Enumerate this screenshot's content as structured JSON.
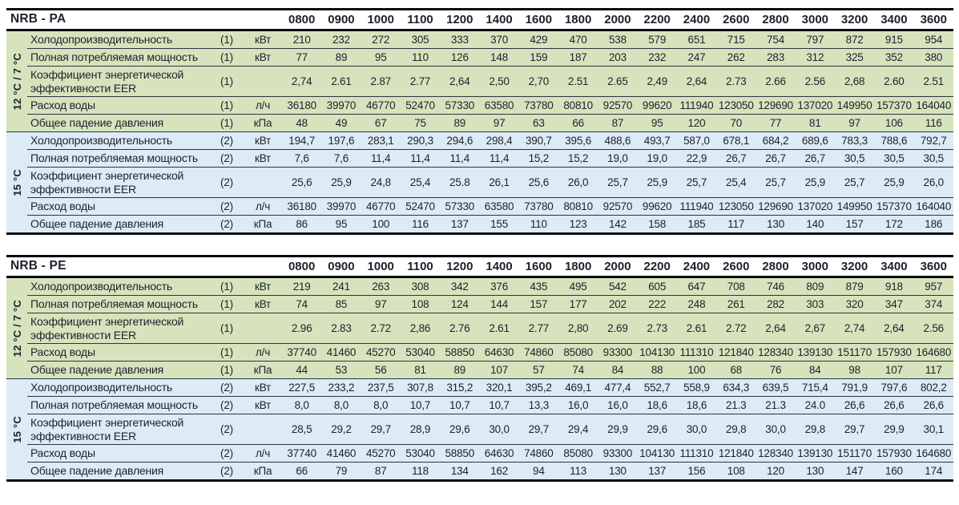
{
  "colors": {
    "green_row_bg": "#d7e3bd",
    "blue_row_bg": "#dcebf5",
    "thick_border": "#0a0d10",
    "thin_row_line": "#2b3540",
    "text": "#1c222b"
  },
  "columns": [
    "0800",
    "0900",
    "1000",
    "1100",
    "1200",
    "1400",
    "1600",
    "1800",
    "2000",
    "2200",
    "2400",
    "2600",
    "2800",
    "3000",
    "3200",
    "3400",
    "3600"
  ],
  "tables": [
    {
      "title": "NRB - PA",
      "sections": [
        {
          "side_label": "12 °C / 7 °C",
          "theme": "green",
          "rows": [
            {
              "label": "Холодопроизводительность",
              "note": "(1)",
              "unit": "кВт",
              "values": [
                "210",
                "232",
                "272",
                "305",
                "333",
                "370",
                "429",
                "470",
                "538",
                "579",
                "651",
                "715",
                "754",
                "797",
                "872",
                "915",
                "954"
              ]
            },
            {
              "label": "Полная потребляемая мощность",
              "note": "(1)",
              "unit": "кВт",
              "values": [
                "77",
                "89",
                "95",
                "110",
                "126",
                "148",
                "159",
                "187",
                "203",
                "232",
                "247",
                "262",
                "283",
                "312",
                "325",
                "352",
                "380"
              ]
            },
            {
              "label": "Коэффициент энергетической эффективности EER",
              "note": "(1)",
              "unit": "",
              "values": [
                "2,74",
                "2.61",
                "2.87",
                "2.77",
                "2,64",
                "2,50",
                "2,70",
                "2.51",
                "2.65",
                "2,49",
                "2,64",
                "2.73",
                "2.66",
                "2.56",
                "2,68",
                "2.60",
                "2.51"
              ]
            },
            {
              "label": "Расход воды",
              "note": "(1)",
              "unit": "л/ч",
              "values": [
                "36180",
                "39970",
                "46770",
                "52470",
                "57330",
                "63580",
                "73780",
                "80810",
                "92570",
                "99620",
                "111940",
                "123050",
                "129690",
                "137020",
                "149950",
                "157370",
                "164040"
              ]
            },
            {
              "label": "Общее падение давления",
              "note": "(1)",
              "unit": "кПа",
              "values": [
                "48",
                "49",
                "67",
                "75",
                "89",
                "97",
                "63",
                "66",
                "87",
                "95",
                "120",
                "70",
                "77",
                "81",
                "97",
                "106",
                "116"
              ]
            }
          ]
        },
        {
          "side_label": "15 °C",
          "theme": "blue",
          "rows": [
            {
              "label": "Холодопроизводительность",
              "note": "(2)",
              "unit": "кВт",
              "values": [
                "194,7",
                "197,6",
                "283,1",
                "290,3",
                "294,6",
                "298,4",
                "390,7",
                "395,6",
                "488,6",
                "493,7",
                "587,0",
                "678,1",
                "684,2",
                "689,6",
                "783,3",
                "788,6",
                "792,7"
              ]
            },
            {
              "label": "Полная потребляемая мощность",
              "note": "(2)",
              "unit": "кВт",
              "values": [
                "7,6",
                "7,6",
                "11,4",
                "11,4",
                "11,4",
                "11,4",
                "15,2",
                "15,2",
                "19,0",
                "19,0",
                "22,9",
                "26,7",
                "26,7",
                "26,7",
                "30,5",
                "30,5",
                "30,5"
              ]
            },
            {
              "label": "Коэффициент энергетической эффективности EER",
              "note": "(2)",
              "unit": "",
              "values": [
                "25,6",
                "25,9",
                "24,8",
                "25,4",
                "25.8",
                "26,1",
                "25,6",
                "26,0",
                "25,7",
                "25,9",
                "25,7",
                "25,4",
                "25,7",
                "25,9",
                "25,7",
                "25,9",
                "26,0"
              ]
            },
            {
              "label": "Расход воды",
              "note": "(2)",
              "unit": "л/ч",
              "values": [
                "36180",
                "39970",
                "46770",
                "52470",
                "57330",
                "63580",
                "73780",
                "80810",
                "92570",
                "99620",
                "111940",
                "123050",
                "129690",
                "137020",
                "149950",
                "157370",
                "164040"
              ]
            },
            {
              "label": "Общее падение давления",
              "note": "(2)",
              "unit": "кПа",
              "values": [
                "86",
                "95",
                "100",
                "116",
                "137",
                "155",
                "110",
                "123",
                "142",
                "158",
                "185",
                "117",
                "130",
                "140",
                "157",
                "172",
                "186"
              ]
            }
          ]
        }
      ]
    },
    {
      "title": "NRB - PE",
      "sections": [
        {
          "side_label": "12 °C / 7 °C",
          "theme": "green",
          "rows": [
            {
              "label": "Холодопроизводительность",
              "note": "(1)",
              "unit": "кВт",
              "values": [
                "219",
                "241",
                "263",
                "308",
                "342",
                "376",
                "435",
                "495",
                "542",
                "605",
                "647",
                "708",
                "746",
                "809",
                "879",
                "918",
                "957"
              ]
            },
            {
              "label": "Полная потребляемая мощность",
              "note": "(1)",
              "unit": "кВт",
              "values": [
                "74",
                "85",
                "97",
                "108",
                "124",
                "144",
                "157",
                "177",
                "202",
                "222",
                "248",
                "261",
                "282",
                "303",
                "320",
                "347",
                "374"
              ]
            },
            {
              "label": "Коэффициент энергетической эффективности EER",
              "note": "(1)",
              "unit": "",
              "values": [
                "2.96",
                "2.83",
                "2.72",
                "2,86",
                "2.76",
                "2.61",
                "2.77",
                "2,80",
                "2.69",
                "2.73",
                "2.61",
                "2.72",
                "2,64",
                "2,67",
                "2,74",
                "2,64",
                "2.56"
              ]
            },
            {
              "label": "Расход воды",
              "note": "(1)",
              "unit": "л/ч",
              "values": [
                "37740",
                "41460",
                "45270",
                "53040",
                "58850",
                "64630",
                "74860",
                "85080",
                "93300",
                "104130",
                "111310",
                "121840",
                "128340",
                "139130",
                "151170",
                "157930",
                "164680"
              ]
            },
            {
              "label": "Общее падение давления",
              "note": "(1)",
              "unit": "кПа",
              "values": [
                "44",
                "53",
                "56",
                "81",
                "89",
                "107",
                "57",
                "74",
                "84",
                "88",
                "100",
                "68",
                "76",
                "84",
                "98",
                "107",
                "117"
              ]
            }
          ]
        },
        {
          "side_label": "15 °C",
          "theme": "blue",
          "rows": [
            {
              "label": "Холодопроизводительность",
              "note": "(2)",
              "unit": "кВт",
              "values": [
                "227,5",
                "233,2",
                "237,5",
                "307,8",
                "315,2",
                "320,1",
                "395,2",
                "469,1",
                "477,4",
                "552,7",
                "558,9",
                "634,3",
                "639,5",
                "715,4",
                "791,9",
                "797,6",
                "802,2"
              ]
            },
            {
              "label": "Полная потребляемая мощность",
              "note": "(2)",
              "unit": "кВт",
              "values": [
                "8,0",
                "8,0",
                "8,0",
                "10,7",
                "10,7",
                "10,7",
                "13,3",
                "16,0",
                "16,0",
                "18,6",
                "18,6",
                "21.3",
                "21.3",
                "24.0",
                "26,6",
                "26,6",
                "26,6"
              ]
            },
            {
              "label": "Коэффициент энергетической эффективности EER",
              "note": "(2)",
              "unit": "",
              "values": [
                "28,5",
                "29,2",
                "29,7",
                "28,9",
                "29,6",
                "30,0",
                "29,7",
                "29,4",
                "29,9",
                "29,6",
                "30,0",
                "29,8",
                "30,0",
                "29,8",
                "29,7",
                "29,9",
                "30,1"
              ]
            },
            {
              "label": "Расход воды",
              "note": "(2)",
              "unit": "л/ч",
              "values": [
                "37740",
                "41460",
                "45270",
                "53040",
                "58850",
                "64630",
                "74860",
                "85080",
                "93300",
                "104130",
                "111310",
                "121840",
                "128340",
                "139130",
                "151170",
                "157930",
                "164680"
              ]
            },
            {
              "label": "Общее падение давления",
              "note": "(2)",
              "unit": "кПа",
              "values": [
                "66",
                "79",
                "87",
                "118",
                "134",
                "162",
                "94",
                "113",
                "130",
                "137",
                "156",
                "108",
                "120",
                "130",
                "147",
                "160",
                "174"
              ]
            }
          ]
        }
      ]
    }
  ]
}
